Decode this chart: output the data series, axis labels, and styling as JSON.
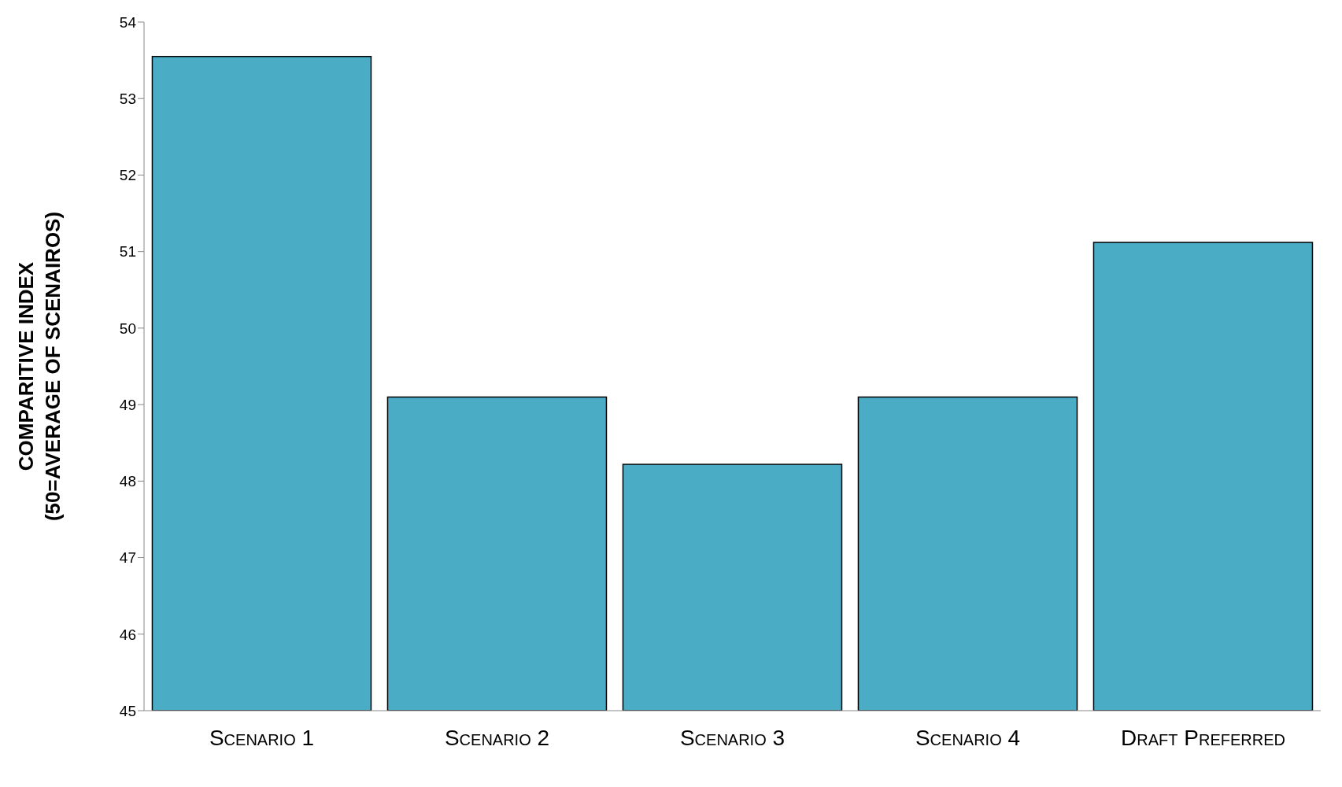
{
  "chart_data": {
    "type": "bar",
    "ylabel": "COMPARITIVE INDEX\n(50=AVERAGE OF SCENAIROS)",
    "categories": [
      "Scenario 1",
      "Scenario 2",
      "Scenario 3",
      "Scenario 4",
      "Draft Preferred"
    ],
    "values": [
      53.55,
      49.1,
      48.22,
      49.1,
      51.12
    ],
    "color": "#4bacc6",
    "ylim": [
      45,
      54
    ],
    "yticks": [
      45,
      46,
      47,
      48,
      49,
      50,
      51,
      52,
      53,
      54
    ],
    "grid": false
  }
}
